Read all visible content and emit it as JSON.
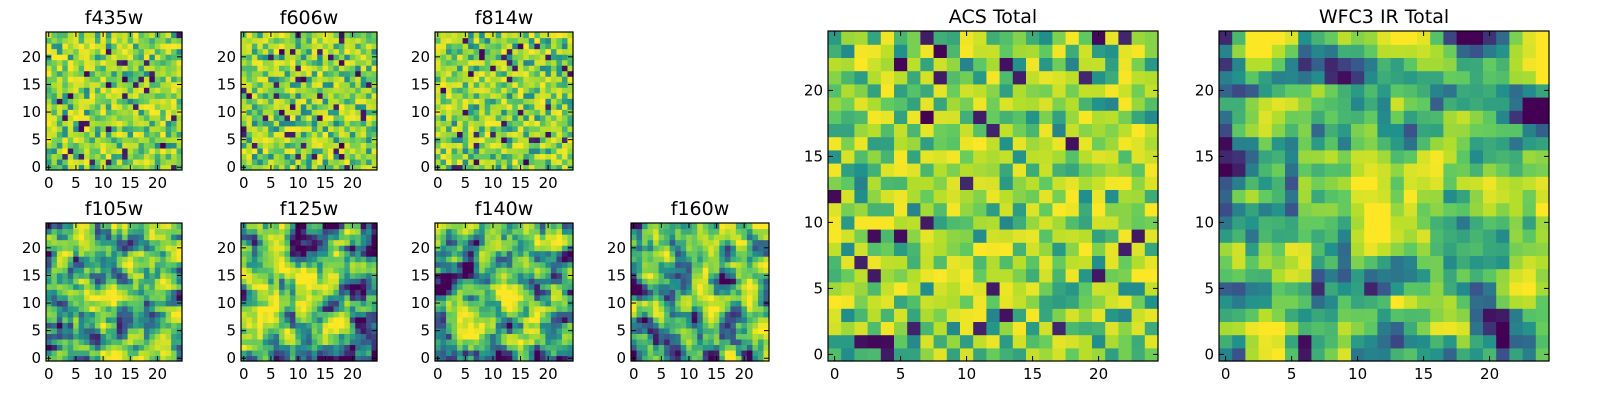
{
  "colormap": "viridis",
  "colormap_stops": [
    "#440154",
    "#3b528b",
    "#21918c",
    "#5ec962",
    "#b5de2b",
    "#fde725"
  ],
  "chart_data": [
    {
      "type": "heatmap",
      "title": "f435w",
      "grid_size": 25,
      "xlim": [
        -0.5,
        24.5
      ],
      "ylim": [
        -0.5,
        24.5
      ],
      "xticks": [
        0,
        5,
        10,
        15,
        20
      ],
      "yticks": [
        0,
        5,
        10,
        15,
        20
      ],
      "texture": "noise",
      "seed": 11
    },
    {
      "type": "heatmap",
      "title": "f606w",
      "grid_size": 25,
      "xlim": [
        -0.5,
        24.5
      ],
      "ylim": [
        -0.5,
        24.5
      ],
      "xticks": [
        0,
        5,
        10,
        15,
        20
      ],
      "yticks": [
        0,
        5,
        10,
        15,
        20
      ],
      "texture": "noise",
      "seed": 23
    },
    {
      "type": "heatmap",
      "title": "f814w",
      "grid_size": 25,
      "xlim": [
        -0.5,
        24.5
      ],
      "ylim": [
        -0.5,
        24.5
      ],
      "xticks": [
        0,
        5,
        10,
        15,
        20
      ],
      "yticks": [
        0,
        5,
        10,
        15,
        20
      ],
      "texture": "noise",
      "seed": 37
    },
    {
      "type": "heatmap",
      "title": "f105w",
      "grid_size": 25,
      "xlim": [
        -0.5,
        24.5
      ],
      "ylim": [
        -0.5,
        24.5
      ],
      "xticks": [
        0,
        5,
        10,
        15,
        20
      ],
      "yticks": [
        0,
        5,
        10,
        15,
        20
      ],
      "texture": "smooth",
      "source_center": [
        12,
        11
      ],
      "seed": 41
    },
    {
      "type": "heatmap",
      "title": "f125w",
      "grid_size": 25,
      "xlim": [
        -0.5,
        24.5
      ],
      "ylim": [
        -0.5,
        24.5
      ],
      "xticks": [
        0,
        5,
        10,
        15,
        20
      ],
      "yticks": [
        0,
        5,
        10,
        15,
        20
      ],
      "texture": "smooth",
      "source_center": [
        12,
        12
      ],
      "seed": 53
    },
    {
      "type": "heatmap",
      "title": "f140w",
      "grid_size": 25,
      "xlim": [
        -0.5,
        24.5
      ],
      "ylim": [
        -0.5,
        24.5
      ],
      "xticks": [
        0,
        5,
        10,
        15,
        20
      ],
      "yticks": [
        0,
        5,
        10,
        15,
        20
      ],
      "texture": "smooth",
      "source_center": [
        12,
        12
      ],
      "seed": 67
    },
    {
      "type": "heatmap",
      "title": "f160w",
      "grid_size": 25,
      "xlim": [
        -0.5,
        24.5
      ],
      "ylim": [
        -0.5,
        24.5
      ],
      "xticks": [
        0,
        5,
        10,
        15,
        20
      ],
      "yticks": [
        0,
        5,
        10,
        15,
        20
      ],
      "texture": "smooth",
      "source_center": [
        13,
        12
      ],
      "seed": 79
    },
    {
      "type": "heatmap",
      "title": "ACS Total",
      "grid_size": 25,
      "xlim": [
        -0.5,
        24.5
      ],
      "ylim": [
        -0.5,
        24.5
      ],
      "xticks": [
        0,
        5,
        10,
        15,
        20
      ],
      "yticks": [
        0,
        5,
        10,
        15,
        20
      ],
      "texture": "noise",
      "seed": 97
    },
    {
      "type": "heatmap",
      "title": "WFC3 IR Total",
      "grid_size": 25,
      "xlim": [
        -0.5,
        24.5
      ],
      "ylim": [
        -0.5,
        24.5
      ],
      "xticks": [
        0,
        5,
        10,
        15,
        20
      ],
      "yticks": [
        0,
        5,
        10,
        15,
        20
      ],
      "texture": "smooth",
      "source_center": [
        12,
        11
      ],
      "seed": 113
    }
  ]
}
